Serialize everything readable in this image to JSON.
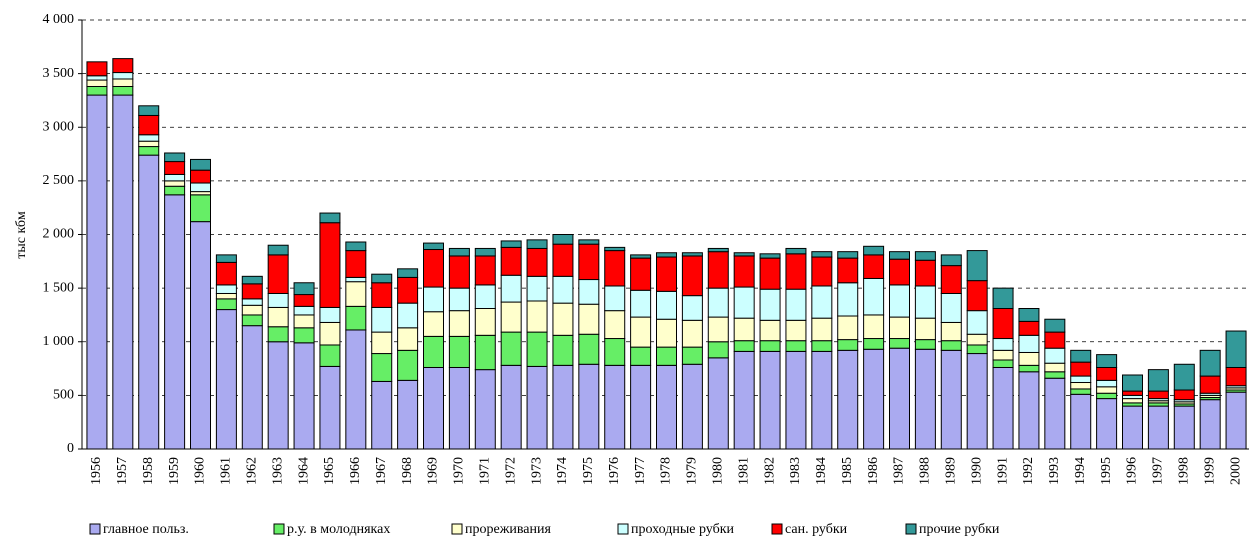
{
  "chart_data": {
    "type": "stacked_bar",
    "y_label": "тыс кбм",
    "categories": [
      "1956",
      "1957",
      "1958",
      "1959",
      "1960",
      "1961",
      "1962",
      "1963",
      "1964",
      "1965",
      "1966",
      "1967",
      "1968",
      "1969",
      "1970",
      "1971",
      "1972",
      "1973",
      "1974",
      "1975",
      "1976",
      "1977",
      "1978",
      "1979",
      "1980",
      "1981",
      "1982",
      "1983",
      "1984",
      "1985",
      "1986",
      "1987",
      "1988",
      "1989",
      "1990",
      "1991",
      "1992",
      "1993",
      "1994",
      "1995",
      "1996",
      "1997",
      "1998",
      "1999",
      "2000"
    ],
    "series": [
      {
        "name": "главное польз.",
        "color": "#aaaaf0",
        "values": [
          3300,
          3300,
          2740,
          2370,
          2120,
          1300,
          1150,
          1000,
          990,
          770,
          1110,
          630,
          640,
          760,
          760,
          740,
          780,
          770,
          780,
          790,
          780,
          780,
          780,
          790,
          850,
          910,
          910,
          910,
          910,
          920,
          930,
          940,
          930,
          920,
          890,
          760,
          720,
          660,
          510,
          470,
          400,
          400,
          400,
          460,
          530
        ]
      },
      {
        "name": "р.у. в молодняках",
        "color": "#66ee66",
        "values": [
          80,
          80,
          80,
          80,
          250,
          100,
          100,
          140,
          140,
          200,
          220,
          260,
          280,
          290,
          290,
          320,
          310,
          320,
          280,
          280,
          250,
          170,
          170,
          160,
          150,
          100,
          100,
          100,
          100,
          100,
          100,
          90,
          90,
          90,
          80,
          70,
          60,
          60,
          50,
          50,
          30,
          30,
          20,
          20,
          20
        ]
      },
      {
        "name": "прореживания",
        "color": "#ffffcc",
        "values": [
          60,
          70,
          50,
          50,
          30,
          50,
          90,
          180,
          120,
          210,
          230,
          200,
          210,
          230,
          240,
          250,
          280,
          290,
          300,
          280,
          260,
          280,
          260,
          250,
          230,
          210,
          190,
          190,
          210,
          220,
          220,
          200,
          200,
          170,
          100,
          90,
          120,
          80,
          60,
          60,
          40,
          20,
          20,
          20,
          20
        ]
      },
      {
        "name": "проходные рубки",
        "color": "#ccffff",
        "values": [
          40,
          60,
          60,
          60,
          80,
          80,
          60,
          130,
          80,
          140,
          40,
          230,
          230,
          230,
          210,
          220,
          250,
          230,
          250,
          230,
          230,
          250,
          260,
          230,
          270,
          290,
          290,
          290,
          300,
          310,
          340,
          300,
          300,
          270,
          220,
          110,
          160,
          140,
          60,
          60,
          30,
          20,
          20,
          20,
          20
        ]
      },
      {
        "name": "сан. рубки",
        "color": "#ff0000",
        "values": [
          130,
          130,
          180,
          120,
          120,
          210,
          140,
          360,
          110,
          790,
          250,
          230,
          240,
          350,
          300,
          270,
          260,
          260,
          300,
          330,
          330,
          300,
          320,
          370,
          340,
          290,
          290,
          330,
          270,
          230,
          220,
          240,
          240,
          260,
          280,
          280,
          130,
          150,
          130,
          120,
          40,
          70,
          90,
          160,
          170
        ]
      },
      {
        "name": "прочие рубки",
        "color": "#339999",
        "values": [
          0,
          0,
          90,
          80,
          100,
          70,
          70,
          90,
          110,
          90,
          80,
          80,
          80,
          60,
          70,
          70,
          60,
          80,
          90,
          40,
          30,
          30,
          40,
          30,
          30,
          30,
          40,
          50,
          50,
          60,
          80,
          70,
          80,
          100,
          280,
          190,
          120,
          120,
          110,
          120,
          150,
          200,
          240,
          240,
          340
        ]
      }
    ],
    "ylim": [
      0,
      4000
    ],
    "yticks": [
      0,
      {
        "value": 500,
        "label": "500"
      },
      {
        "value": 1000,
        "label": "1 000"
      },
      {
        "value": 1500,
        "label": "1 500"
      },
      {
        "value": 2000,
        "label": "2 000"
      },
      {
        "value": 2500,
        "label": "2 500"
      },
      {
        "value": 3000,
        "label": "3 000"
      },
      {
        "value": 3500,
        "label": "3 500"
      },
      {
        "value": 4000,
        "label": "4 000"
      }
    ],
    "grid": true,
    "legend": "bottom"
  }
}
